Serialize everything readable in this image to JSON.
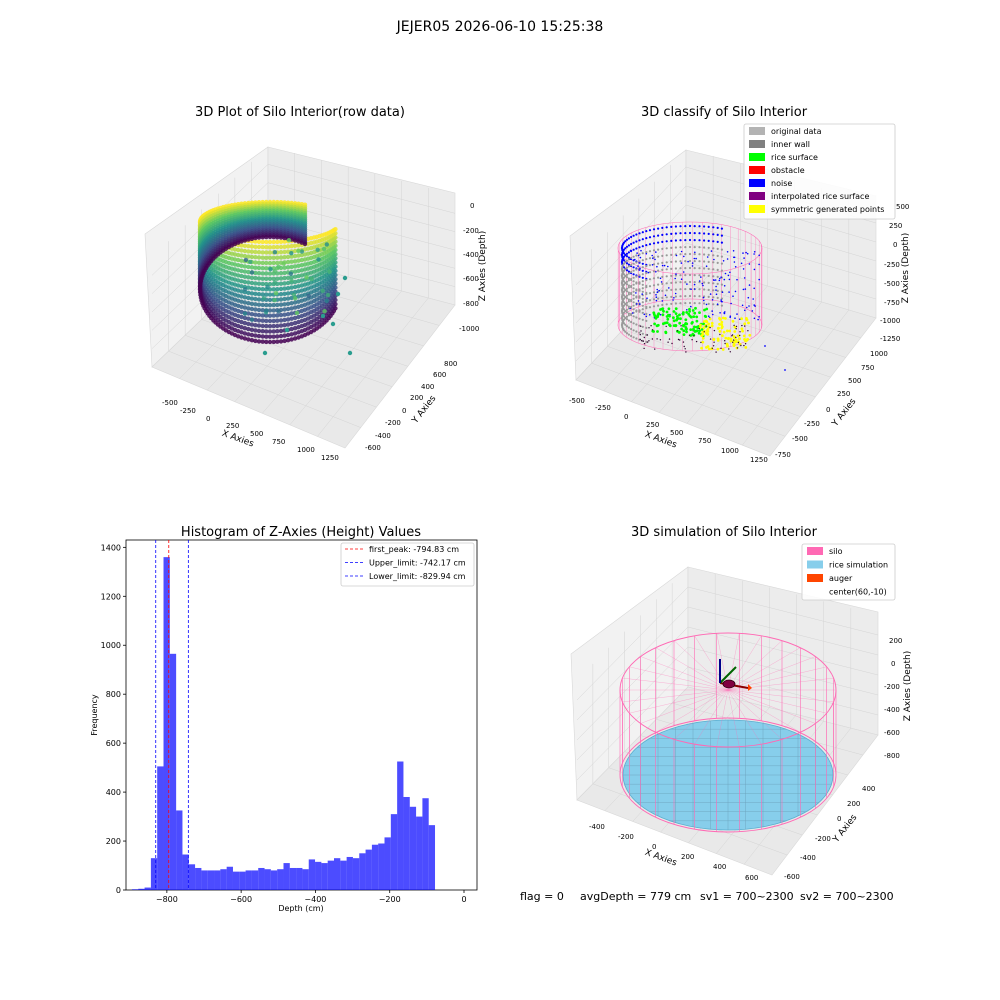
{
  "suptitle": "JEJER05 2026-06-10 15:25:38",
  "status_line": {
    "flag": "flag = 0",
    "avg_depth": "avgDepth = 779 cm",
    "sv1": "sv1 = 700~2300",
    "sv2": "sv2 = 700~2300"
  },
  "chart_data": [
    {
      "type": "scatter",
      "projection": "3d",
      "title": "3D Plot of Silo Interior(row data)",
      "xlabel": "X Axies",
      "ylabel": "Y Axies",
      "zlabel": "Z Axies (Depth)",
      "x_ticks": [
        "-500",
        "-250",
        "0",
        "250",
        "500",
        "750",
        "1000",
        "1250"
      ],
      "y_ticks": [
        "-600",
        "-400",
        "-200",
        "0",
        "200",
        "400",
        "600",
        "800"
      ],
      "z_ticks": [
        "0",
        "-200",
        "-400",
        "-600",
        "-800",
        "-1000"
      ],
      "colormap": "viridis",
      "grid": true,
      "summary": {
        "x_range": [
          -450,
          1000
        ],
        "y_range": [
          -500,
          700
        ],
        "z_range": [
          -1000,
          -150
        ]
      },
      "outliers": [
        [
          1030,
          0,
          -600
        ],
        [
          900,
          -300,
          -800
        ],
        [
          880,
          100,
          -900
        ],
        [
          1180,
          -400,
          -1000
        ]
      ]
    },
    {
      "type": "scatter",
      "projection": "3d",
      "title": "3D classify of Silo Interior",
      "xlabel": "X Axies",
      "ylabel": "Y Axies",
      "zlabel": "Z Axies (Depth)",
      "x_ticks": [
        "-500",
        "-250",
        "0",
        "250",
        "500",
        "750",
        "1000",
        "1250"
      ],
      "y_ticks": [
        "-750",
        "-500",
        "-250",
        "0",
        "250",
        "500",
        "750",
        "1000"
      ],
      "z_ticks": [
        "250",
        "0",
        "-250",
        "-500",
        "-750",
        "-1000",
        "-1250"
      ],
      "z_top_tick": "500",
      "grid": true,
      "legend_position": "top-right",
      "legend": [
        {
          "label": "original data",
          "color": "#b3b3b3"
        },
        {
          "label": "inner wall",
          "color": "#808080"
        },
        {
          "label": "rice surface",
          "color": "#00ff00"
        },
        {
          "label": "obstacle",
          "color": "#ff0000"
        },
        {
          "label": "noise",
          "color": "#0000ff"
        },
        {
          "label": "interpolated rice surface",
          "color": "#800080"
        },
        {
          "label": "symmetric generated points",
          "color": "#ffff00"
        }
      ]
    },
    {
      "type": "histogram",
      "title": "Histogram of Z-Axies (Height) Values",
      "xlabel": "Depth (cm)",
      "ylabel": "Frequency",
      "xlim": [
        -910,
        35
      ],
      "ylim": [
        0,
        1430
      ],
      "x_ticks": [
        -800,
        -600,
        -400,
        -200,
        0
      ],
      "y_ticks": [
        0,
        200,
        400,
        600,
        800,
        1000,
        1200,
        1400
      ],
      "bar_color": "#0000ff",
      "bin_width": 17,
      "bins_start": [
        -894,
        -877,
        -860,
        -843,
        -826,
        -809,
        -792,
        -775,
        -758,
        -741,
        -724,
        -707,
        -690,
        -673,
        -656,
        -639,
        -622,
        -605,
        -588,
        -571,
        -554,
        -537,
        -520,
        -503,
        -486,
        -469,
        -452,
        -435,
        -418,
        -401,
        -384,
        -367,
        -350,
        -333,
        -316,
        -299,
        -282,
        -265,
        -248,
        -231,
        -214,
        -197,
        -180,
        -163,
        -146,
        -129,
        -112,
        -95,
        -78,
        -61,
        -44,
        -27,
        -10
      ],
      "frequencies": [
        3,
        5,
        10,
        130,
        505,
        1360,
        965,
        325,
        145,
        105,
        90,
        80,
        80,
        80,
        85,
        95,
        75,
        75,
        80,
        80,
        90,
        85,
        80,
        85,
        110,
        90,
        90,
        85,
        125,
        115,
        110,
        120,
        130,
        120,
        135,
        130,
        150,
        165,
        185,
        190,
        215,
        310,
        525,
        380,
        340,
        300,
        375,
        265,
        0,
        0,
        0,
        0,
        0
      ],
      "vlines": [
        {
          "x": -794.83,
          "label": "first_peak: -794.83 cm",
          "color": "#ff0000"
        },
        {
          "x": -742.17,
          "label": "Upper_limit: -742.17 cm",
          "color": "#0000ff"
        },
        {
          "x": -829.94,
          "label": "Lower_limit: -829.94 cm",
          "color": "#0000ff"
        }
      ],
      "legend_position": "top-right",
      "grid": false
    },
    {
      "type": "surface",
      "projection": "3d",
      "title": "3D simulation of Silo Interior",
      "xlabel": "X Axies",
      "ylabel": "Y Axies",
      "zlabel": "Z Axies (Depth)",
      "x_ticks": [
        "-400",
        "-200",
        "0",
        "200",
        "400",
        "600"
      ],
      "y_ticks": [
        "-600",
        "-400",
        "-200",
        "0",
        "200",
        "400"
      ],
      "z_ticks": [
        "200",
        "0",
        "-200",
        "-400",
        "-600",
        "-800"
      ],
      "grid": true,
      "legend_position": "top-right",
      "legend": [
        {
          "label": "silo",
          "color": "#ff69b4"
        },
        {
          "label": "rice simulation",
          "color": "#87ceeb"
        },
        {
          "label": "auger",
          "color": "#ff4500"
        },
        {
          "label": "center(60,-10)",
          "color": "none"
        }
      ]
    }
  ]
}
